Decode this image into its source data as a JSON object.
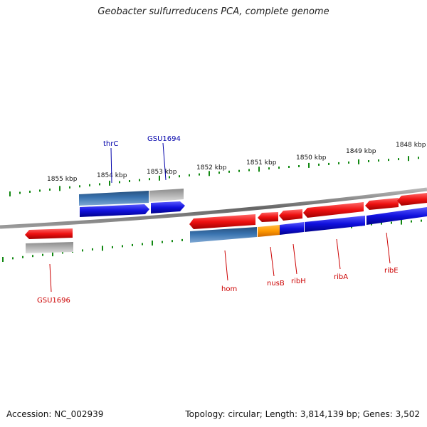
{
  "title": "Geobacter sulfurreducens PCA, complete genome",
  "footer": {
    "accession": "Accession: NC_002939",
    "summary": "Topology: circular; Length: 3,814,139 bp; Genes: 3,502"
  },
  "scale_labels": [
    "1855 kbp",
    "1854 kbp",
    "1853 kbp",
    "1852 kbp",
    "1851 kbp",
    "1850 kbp",
    "1849 kbp",
    "1848 kbp"
  ],
  "gene_labels": {
    "thrC": "thrC",
    "GSU1694": "GSU1694",
    "GSU1696": "GSU1696",
    "hom": "hom",
    "nusB": "nusB",
    "ribH": "ribH",
    "ribA": "ribA",
    "ribE": "ribE"
  },
  "colors": {
    "gene_red": "#ee1111",
    "cds_blue": "#1010dd",
    "steel_blue": "#3a74b0",
    "grey": "#a8a8a8",
    "orange": "#ff9900",
    "tick_green": "#118811",
    "label_blue": "#0000aa",
    "label_red": "#cc0000"
  }
}
